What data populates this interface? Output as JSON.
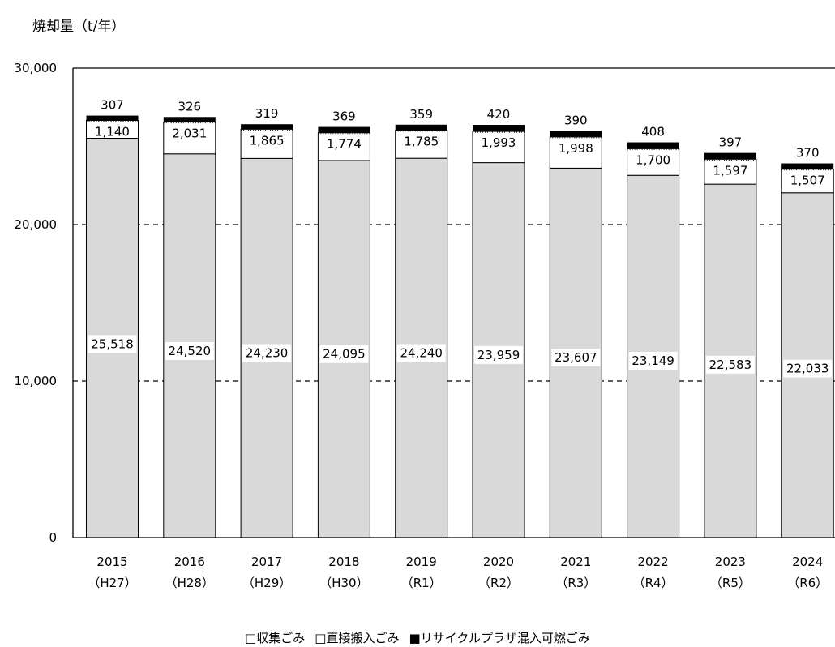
{
  "chart_data": {
    "type": "bar",
    "stacked": true,
    "title": "",
    "ylabel": "焼却量（t/年）",
    "xlabel": "",
    "ylim": [
      0,
      30000
    ],
    "yticks": [
      0,
      10000,
      20000,
      30000
    ],
    "ytick_labels": [
      "0",
      "10,000",
      "20,000",
      "30,000"
    ],
    "grid": "dashed horizontal at 10,000 and 20,000",
    "legend_position": "bottom",
    "categories": [
      "2015",
      "2016",
      "2017",
      "2018",
      "2019",
      "2020",
      "2021",
      "2022",
      "2023",
      "2024"
    ],
    "categories_sub": [
      "（H27）",
      "（H28）",
      "（H29）",
      "（H30）",
      "（R1）",
      "（R2）",
      "（R3）",
      "（R4）",
      "（R5）",
      "（R6）"
    ],
    "series": [
      {
        "name": "収集ごみ",
        "color": "#d9d9d9",
        "values": [
          25518,
          24520,
          24230,
          24095,
          24240,
          23959,
          23607,
          23149,
          22583,
          22033
        ],
        "labels": [
          "25,518",
          "24,520",
          "24,230",
          "24,095",
          "24,240",
          "23,959",
          "23,607",
          "23,149",
          "22,583",
          "22,033"
        ]
      },
      {
        "name": "直接搬入ごみ",
        "color": "#ffffff",
        "values": [
          1140,
          2031,
          1865,
          1774,
          1785,
          1993,
          1998,
          1700,
          1597,
          1507
        ],
        "labels": [
          "1,140",
          "2,031",
          "1,865",
          "1,774",
          "1,785",
          "1,993",
          "1,998",
          "1,700",
          "1,597",
          "1,507"
        ]
      },
      {
        "name": "リサイクルプラザ混入可燃ごみ",
        "color": "#000000",
        "values": [
          307,
          326,
          319,
          369,
          359,
          420,
          390,
          408,
          397,
          370
        ],
        "labels": [
          "307",
          "326",
          "319",
          "369",
          "359",
          "420",
          "390",
          "408",
          "397",
          "370"
        ]
      }
    ]
  },
  "legend": {
    "items": [
      {
        "marker": "□",
        "label": "収集ごみ"
      },
      {
        "marker": "□",
        "label": "直接搬入ごみ"
      },
      {
        "marker": "■",
        "label": "リサイクルプラザ混入可燃ごみ"
      }
    ]
  }
}
